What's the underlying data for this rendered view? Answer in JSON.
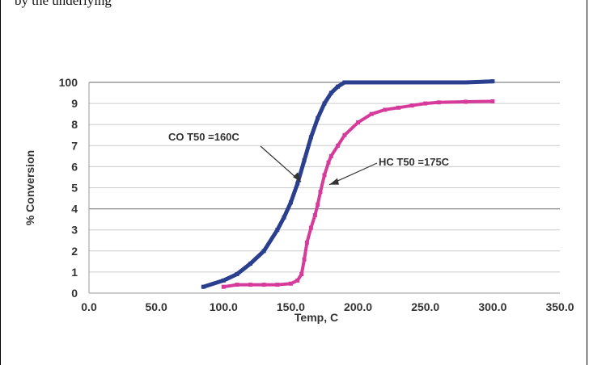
{
  "page": {
    "top_text": "by the underlying"
  },
  "chart_data": {
    "type": "line",
    "title": "",
    "xlabel": "Temp, C",
    "ylabel": "% Conversion",
    "xlim": [
      0,
      350
    ],
    "x_ticks": [
      "0.0",
      "50.0",
      "100.0",
      "150.0",
      "200.0",
      "250.0",
      "300.0",
      "350.0"
    ],
    "y_ticks": [
      "0",
      "1",
      "2",
      "3",
      "4",
      "5",
      "6",
      "7",
      "8",
      "9",
      "100"
    ],
    "grid": true,
    "legend": "none",
    "series": [
      {
        "color": "#2b3f8f",
        "x": [
          85,
          100,
          110,
          120,
          130,
          140,
          145,
          150,
          155,
          160,
          165,
          170,
          175,
          180,
          185,
          190,
          200,
          220,
          250,
          280,
          300
        ],
        "y": [
          0.3,
          0.6,
          0.9,
          1.4,
          2.0,
          3.0,
          3.6,
          4.3,
          5.2,
          6.3,
          7.4,
          8.3,
          9.0,
          9.5,
          9.8,
          10.0,
          10.0,
          10.0,
          10.0,
          10.0,
          10.05
        ]
      },
      {
        "color": "#d63a9a",
        "x": [
          100,
          110,
          120,
          130,
          140,
          150,
          155,
          158,
          160,
          162,
          165,
          168,
          170,
          172,
          175,
          178,
          180,
          185,
          190,
          200,
          210,
          220,
          230,
          240,
          250,
          260,
          280,
          300
        ],
        "y": [
          0.3,
          0.4,
          0.4,
          0.4,
          0.4,
          0.45,
          0.6,
          0.9,
          1.6,
          2.4,
          3.1,
          3.7,
          4.2,
          4.8,
          5.6,
          6.2,
          6.5,
          7.0,
          7.5,
          8.1,
          8.5,
          8.7,
          8.8,
          8.9,
          9.0,
          9.05,
          9.08,
          9.1
        ]
      }
    ],
    "annotations": [
      {
        "text": "CO T50 =160C",
        "x": 160,
        "y": 5.2
      },
      {
        "text": "HC T50 =175C",
        "x": 175,
        "y": 5.3
      }
    ]
  }
}
